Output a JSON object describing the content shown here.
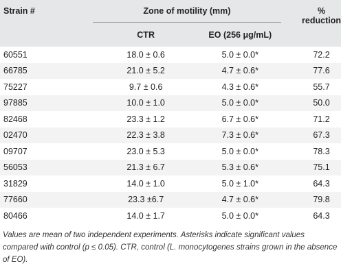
{
  "table": {
    "header": {
      "strain": "Strain #",
      "zone": "Zone of motility (mm)",
      "reduction": "% reduction",
      "ctr": "CTR",
      "eo": "EO (256 μg/mL)"
    },
    "rows": [
      [
        "60551",
        "18.0 ± 0.6",
        "5.0 ± 0.0*",
        "72.2"
      ],
      [
        "66785",
        "21.0 ± 5.2",
        "4.7 ± 0.6*",
        "77.6"
      ],
      [
        "75227",
        "9.7 ± 0.6",
        "4.3 ± 0.6*",
        "55.7"
      ],
      [
        "97885",
        "10.0 ± 1.0",
        "5.0 ± 0.0*",
        "50.0"
      ],
      [
        "82468",
        "23.3 ± 1.2",
        "6.7 ± 0.6*",
        "71.2"
      ],
      [
        "02470",
        "22.3 ± 3.8",
        "7.3 ± 0.6*",
        "67.3"
      ],
      [
        "09707",
        "23.0 ± 5.3",
        "5.0 ± 0.0*",
        "78.3"
      ],
      [
        "56053",
        "21.3 ± 6.7",
        "5.3 ± 0.6*",
        "75.1"
      ],
      [
        "31829",
        "14.0 ± 1.0",
        "5.0 ± 1.0*",
        "64.3"
      ],
      [
        "77660",
        "23.3 ±6.7",
        "4.7 ± 0.6*",
        "79.8"
      ],
      [
        "80466",
        "14.0 ± 1.7",
        "5.0 ± 0.0*",
        "64.3"
      ]
    ],
    "note": "Values are mean of two independent experiments. Asterisks indicate significant values compared with control (p ≤ 0.05). CTR, control (L. monocytogenes strains grown in the absence of EO)."
  }
}
